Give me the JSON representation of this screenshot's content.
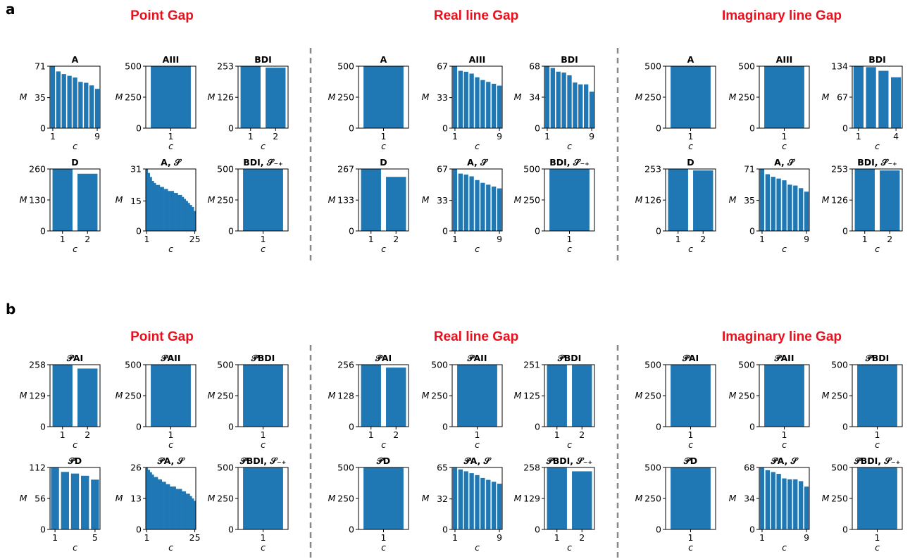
{
  "panels": [
    {
      "letter": "a",
      "sections": [
        "Point Gap",
        "Real line Gap",
        "Imaginary line Gap"
      ]
    },
    {
      "letter": "b",
      "sections": [
        "Point Gap",
        "Real line Gap",
        "Imaginary line Gap"
      ]
    }
  ],
  "colors": {
    "bar": "#1f77b4",
    "section_title": "#e8101c",
    "divider": "#888888"
  },
  "chart_data": [
    {
      "panel": "a",
      "section": "Point Gap",
      "type": "bar",
      "title": "A",
      "xlabel": "c",
      "ylabel": "M",
      "x": [
        1,
        2,
        3,
        4,
        5,
        6,
        7,
        8,
        9
      ],
      "values": [
        71,
        65,
        62,
        60,
        58,
        53,
        52,
        49,
        45
      ],
      "xticks": [
        1,
        9
      ],
      "yticks": [
        0,
        35,
        71
      ]
    },
    {
      "panel": "a",
      "section": "Point Gap",
      "type": "bar",
      "title": "AIII",
      "xlabel": "c",
      "ylabel": "M",
      "x": [
        1
      ],
      "values": [
        500
      ],
      "xticks": [
        1
      ],
      "yticks": [
        0,
        250,
        500
      ]
    },
    {
      "panel": "a",
      "section": "Point Gap",
      "type": "bar",
      "title": "BDI",
      "xlabel": "c",
      "ylabel": "M",
      "x": [
        1,
        2
      ],
      "values": [
        253,
        247
      ],
      "xticks": [
        1,
        2
      ],
      "yticks": [
        0,
        126,
        253
      ]
    },
    {
      "panel": "a",
      "section": "Point Gap",
      "type": "bar",
      "title": "D",
      "xlabel": "c",
      "ylabel": "M",
      "x": [
        1,
        2
      ],
      "values": [
        260,
        240
      ],
      "xticks": [
        1,
        2
      ],
      "yticks": [
        0,
        130,
        260
      ]
    },
    {
      "panel": "a",
      "section": "Point Gap",
      "type": "bar",
      "title": "A, 𝒮",
      "xlabel": "c",
      "ylabel": "M",
      "x": [
        1,
        2,
        3,
        4,
        5,
        6,
        7,
        8,
        9,
        10,
        11,
        12,
        13,
        14,
        15,
        16,
        17,
        18,
        19,
        20,
        21,
        22,
        23,
        24,
        25
      ],
      "values": [
        31,
        29,
        27,
        25,
        24,
        23,
        23,
        22,
        22,
        21,
        21,
        20,
        20,
        20,
        19,
        19,
        18,
        18,
        17,
        16,
        15,
        14,
        13,
        12,
        10
      ],
      "xticks": [
        1,
        25
      ],
      "yticks": [
        0,
        15,
        31
      ]
    },
    {
      "panel": "a",
      "section": "Point Gap",
      "type": "bar",
      "title": "BDI, 𝒮₋₊",
      "xlabel": "c",
      "ylabel": "M",
      "x": [
        1
      ],
      "values": [
        500
      ],
      "xticks": [
        1
      ],
      "yticks": [
        0,
        250,
        500
      ]
    },
    {
      "panel": "a",
      "section": "Real line Gap",
      "type": "bar",
      "title": "A",
      "xlabel": "c",
      "ylabel": "M",
      "x": [
        1
      ],
      "values": [
        500
      ],
      "xticks": [
        1
      ],
      "yticks": [
        0,
        250,
        500
      ]
    },
    {
      "panel": "a",
      "section": "Real line Gap",
      "type": "bar",
      "title": "AIII",
      "xlabel": "c",
      "ylabel": "M",
      "x": [
        1,
        2,
        3,
        4,
        5,
        6,
        7,
        8,
        9
      ],
      "values": [
        67,
        62,
        61,
        59,
        55,
        52,
        50,
        48,
        46
      ],
      "xticks": [
        1,
        9
      ],
      "yticks": [
        0,
        33,
        67
      ]
    },
    {
      "panel": "a",
      "section": "Real line Gap",
      "type": "bar",
      "title": "BDI",
      "xlabel": "c",
      "ylabel": "M",
      "x": [
        1,
        2,
        3,
        4,
        5,
        6,
        7,
        8,
        9
      ],
      "values": [
        68,
        66,
        62,
        61,
        58,
        50,
        48,
        48,
        40
      ],
      "xticks": [
        1,
        9
      ],
      "yticks": [
        0,
        34,
        68
      ]
    },
    {
      "panel": "a",
      "section": "Real line Gap",
      "type": "bar",
      "title": "D",
      "xlabel": "c",
      "ylabel": "M",
      "x": [
        1,
        2
      ],
      "values": [
        267,
        233
      ],
      "xticks": [
        1,
        2
      ],
      "yticks": [
        0,
        133,
        267
      ]
    },
    {
      "panel": "a",
      "section": "Real line Gap",
      "type": "bar",
      "title": "A, 𝒮",
      "xlabel": "c",
      "ylabel": "M",
      "x": [
        1,
        2,
        3,
        4,
        5,
        6,
        7,
        8,
        9
      ],
      "values": [
        67,
        62,
        61,
        59,
        55,
        52,
        50,
        48,
        46
      ],
      "xticks": [
        1,
        9
      ],
      "yticks": [
        0,
        33,
        67
      ]
    },
    {
      "panel": "a",
      "section": "Real line Gap",
      "type": "bar",
      "title": "BDI, 𝒮₋₊",
      "xlabel": "c",
      "ylabel": "M",
      "x": [
        1
      ],
      "values": [
        500
      ],
      "xticks": [
        1
      ],
      "yticks": [
        0,
        250,
        500
      ]
    },
    {
      "panel": "a",
      "section": "Imaginary line Gap",
      "type": "bar",
      "title": "A",
      "xlabel": "c",
      "ylabel": "M",
      "x": [
        1
      ],
      "values": [
        500
      ],
      "xticks": [
        1
      ],
      "yticks": [
        0,
        250,
        500
      ]
    },
    {
      "panel": "a",
      "section": "Imaginary line Gap",
      "type": "bar",
      "title": "AIII",
      "xlabel": "c",
      "ylabel": "M",
      "x": [
        1
      ],
      "values": [
        500
      ],
      "xticks": [
        1
      ],
      "yticks": [
        0,
        250,
        500
      ]
    },
    {
      "panel": "a",
      "section": "Imaginary line Gap",
      "type": "bar",
      "title": "BDI",
      "xlabel": "c",
      "ylabel": "M",
      "x": [
        1,
        2,
        3,
        4
      ],
      "values": [
        134,
        132,
        124,
        110
      ],
      "xticks": [
        1,
        4
      ],
      "yticks": [
        0,
        67,
        134
      ]
    },
    {
      "panel": "a",
      "section": "Imaginary line Gap",
      "type": "bar",
      "title": "D",
      "xlabel": "c",
      "ylabel": "M",
      "x": [
        1,
        2
      ],
      "values": [
        253,
        247
      ],
      "xticks": [
        1,
        2
      ],
      "yticks": [
        0,
        126,
        253
      ]
    },
    {
      "panel": "a",
      "section": "Imaginary line Gap",
      "type": "bar",
      "title": "A, 𝒮",
      "xlabel": "c",
      "ylabel": "M",
      "x": [
        1,
        2,
        3,
        4,
        5,
        6,
        7,
        8,
        9
      ],
      "values": [
        71,
        65,
        62,
        60,
        58,
        53,
        52,
        49,
        45
      ],
      "xticks": [
        1,
        9
      ],
      "yticks": [
        0,
        35,
        71
      ]
    },
    {
      "panel": "a",
      "section": "Imaginary line Gap",
      "type": "bar",
      "title": "BDI, 𝒮₋₊",
      "xlabel": "c",
      "ylabel": "M",
      "x": [
        1,
        2
      ],
      "values": [
        253,
        247
      ],
      "xticks": [
        1,
        2
      ],
      "yticks": [
        0,
        126,
        253
      ]
    },
    {
      "panel": "b",
      "section": "Point Gap",
      "type": "bar",
      "title": "𝒫AI",
      "xlabel": "c",
      "ylabel": "M",
      "x": [
        1,
        2
      ],
      "values": [
        258,
        242
      ],
      "xticks": [
        1,
        2
      ],
      "yticks": [
        0,
        129,
        258
      ]
    },
    {
      "panel": "b",
      "section": "Point Gap",
      "type": "bar",
      "title": "𝒫AII",
      "xlabel": "c",
      "ylabel": "M",
      "x": [
        1
      ],
      "values": [
        500
      ],
      "xticks": [
        1
      ],
      "yticks": [
        0,
        250,
        500
      ]
    },
    {
      "panel": "b",
      "section": "Point Gap",
      "type": "bar",
      "title": "𝒫BDI",
      "xlabel": "c",
      "ylabel": "M",
      "x": [
        1
      ],
      "values": [
        500
      ],
      "xticks": [
        1
      ],
      "yticks": [
        0,
        250,
        500
      ]
    },
    {
      "panel": "b",
      "section": "Point Gap",
      "type": "bar",
      "title": "𝒫D",
      "xlabel": "c",
      "ylabel": "M",
      "x": [
        1,
        2,
        3,
        4,
        5
      ],
      "values": [
        112,
        104,
        101,
        97,
        90
      ],
      "xticks": [
        1,
        5
      ],
      "yticks": [
        0,
        56,
        112
      ]
    },
    {
      "panel": "b",
      "section": "Point Gap",
      "type": "bar",
      "title": "𝒫A, 𝒮",
      "xlabel": "c",
      "ylabel": "M",
      "x": [
        1,
        2,
        3,
        4,
        5,
        6,
        7,
        8,
        9,
        10,
        11,
        12,
        13,
        14,
        15,
        16,
        17,
        18,
        19,
        20,
        21,
        22,
        23,
        24,
        25
      ],
      "values": [
        26,
        25,
        24,
        23,
        22,
        22,
        21,
        21,
        20,
        20,
        19,
        19,
        18,
        18,
        18,
        17,
        17,
        17,
        16,
        16,
        15,
        15,
        14,
        13,
        12
      ],
      "xticks": [
        1,
        25
      ],
      "yticks": [
        0,
        13,
        26
      ]
    },
    {
      "panel": "b",
      "section": "Point Gap",
      "type": "bar",
      "title": "𝒫BDI, 𝒮₋₊",
      "xlabel": "c",
      "ylabel": "M",
      "x": [
        1
      ],
      "values": [
        500
      ],
      "xticks": [
        1
      ],
      "yticks": [
        0,
        250,
        500
      ]
    },
    {
      "panel": "b",
      "section": "Real line Gap",
      "type": "bar",
      "title": "𝒫AI",
      "xlabel": "c",
      "ylabel": "M",
      "x": [
        1,
        2
      ],
      "values": [
        256,
        244
      ],
      "xticks": [
        1,
        2
      ],
      "yticks": [
        0,
        128,
        256
      ]
    },
    {
      "panel": "b",
      "section": "Real line Gap",
      "type": "bar",
      "title": "𝒫AII",
      "xlabel": "c",
      "ylabel": "M",
      "x": [
        1
      ],
      "values": [
        500
      ],
      "xticks": [
        1
      ],
      "yticks": [
        0,
        250,
        500
      ]
    },
    {
      "panel": "b",
      "section": "Real line Gap",
      "type": "bar",
      "title": "𝒫BDI",
      "xlabel": "c",
      "ylabel": "M",
      "x": [
        1,
        2
      ],
      "values": [
        251,
        249
      ],
      "xticks": [
        1,
        2
      ],
      "yticks": [
        0,
        125,
        251
      ]
    },
    {
      "panel": "b",
      "section": "Real line Gap",
      "type": "bar",
      "title": "𝒫D",
      "xlabel": "c",
      "ylabel": "M",
      "x": [
        1
      ],
      "values": [
        500
      ],
      "xticks": [
        1
      ],
      "yticks": [
        0,
        250,
        500
      ]
    },
    {
      "panel": "b",
      "section": "Real line Gap",
      "type": "bar",
      "title": "𝒫A, 𝒮",
      "xlabel": "c",
      "ylabel": "M",
      "x": [
        1,
        2,
        3,
        4,
        5,
        6,
        7,
        8,
        9
      ],
      "values": [
        65,
        63,
        61,
        59,
        57,
        54,
        52,
        50,
        48
      ],
      "xticks": [
        1,
        9
      ],
      "yticks": [
        0,
        32,
        65
      ]
    },
    {
      "panel": "b",
      "section": "Real line Gap",
      "type": "bar",
      "title": "𝒫BDI, 𝒮₋₊",
      "xlabel": "c",
      "ylabel": "M",
      "x": [
        1,
        2
      ],
      "values": [
        258,
        242
      ],
      "xticks": [
        1,
        2
      ],
      "yticks": [
        0,
        129,
        258
      ]
    },
    {
      "panel": "b",
      "section": "Imaginary line Gap",
      "type": "bar",
      "title": "𝒫AI",
      "xlabel": "c",
      "ylabel": "M",
      "x": [
        1
      ],
      "values": [
        500
      ],
      "xticks": [
        1
      ],
      "yticks": [
        0,
        250,
        500
      ]
    },
    {
      "panel": "b",
      "section": "Imaginary line Gap",
      "type": "bar",
      "title": "𝒫AII",
      "xlabel": "c",
      "ylabel": "M",
      "x": [
        1
      ],
      "values": [
        500
      ],
      "xticks": [
        1
      ],
      "yticks": [
        0,
        250,
        500
      ]
    },
    {
      "panel": "b",
      "section": "Imaginary line Gap",
      "type": "bar",
      "title": "𝒫BDI",
      "xlabel": "c",
      "ylabel": "M",
      "x": [
        1
      ],
      "values": [
        500
      ],
      "xticks": [
        1
      ],
      "yticks": [
        0,
        250,
        500
      ]
    },
    {
      "panel": "b",
      "section": "Imaginary line Gap",
      "type": "bar",
      "title": "𝒫D",
      "xlabel": "c",
      "ylabel": "M",
      "x": [
        1
      ],
      "values": [
        500
      ],
      "xticks": [
        1
      ],
      "yticks": [
        0,
        250,
        500
      ]
    },
    {
      "panel": "b",
      "section": "Imaginary line Gap",
      "type": "bar",
      "title": "𝒫A, 𝒮",
      "xlabel": "c",
      "ylabel": "M",
      "x": [
        1,
        2,
        3,
        4,
        5,
        6,
        7,
        8,
        9
      ],
      "values": [
        68,
        65,
        63,
        61,
        56,
        55,
        55,
        53,
        47
      ],
      "xticks": [
        1,
        9
      ],
      "yticks": [
        0,
        34,
        68
      ]
    },
    {
      "panel": "b",
      "section": "Imaginary line Gap",
      "type": "bar",
      "title": "𝒫BDI, 𝒮₋₊",
      "xlabel": "c",
      "ylabel": "M",
      "x": [
        1
      ],
      "values": [
        500
      ],
      "xticks": [
        1
      ],
      "yticks": [
        0,
        250,
        500
      ]
    }
  ]
}
